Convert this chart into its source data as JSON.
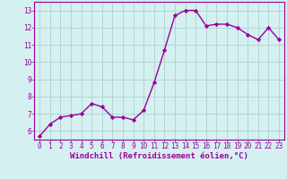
{
  "x": [
    0,
    1,
    2,
    3,
    4,
    5,
    6,
    7,
    8,
    9,
    10,
    11,
    12,
    13,
    14,
    15,
    16,
    17,
    18,
    19,
    20,
    21,
    22,
    23
  ],
  "y": [
    5.7,
    6.4,
    6.8,
    6.9,
    7.0,
    7.6,
    7.4,
    6.8,
    6.8,
    6.65,
    7.2,
    8.8,
    10.7,
    12.7,
    13.0,
    13.0,
    12.1,
    12.2,
    12.2,
    12.0,
    11.6,
    11.3,
    12.0,
    11.3
  ],
  "line_color": "#990099",
  "marker": "D",
  "marker_size": 2.2,
  "bg_color": "#d4f0f0",
  "grid_color": "#b0d0d0",
  "xlabel": "Windchill (Refroidissement éolien,°C)",
  "xlim": [
    -0.5,
    23.5
  ],
  "ylim": [
    5.5,
    13.5
  ],
  "yticks": [
    6,
    7,
    8,
    9,
    10,
    11,
    12,
    13
  ],
  "xticks": [
    0,
    1,
    2,
    3,
    4,
    5,
    6,
    7,
    8,
    9,
    10,
    11,
    12,
    13,
    14,
    15,
    16,
    17,
    18,
    19,
    20,
    21,
    22,
    23
  ],
  "label_color": "#990099",
  "spine_color": "#990099",
  "line_width": 1.0,
  "tick_fontsize": 5.5,
  "xlabel_fontsize": 6.5
}
